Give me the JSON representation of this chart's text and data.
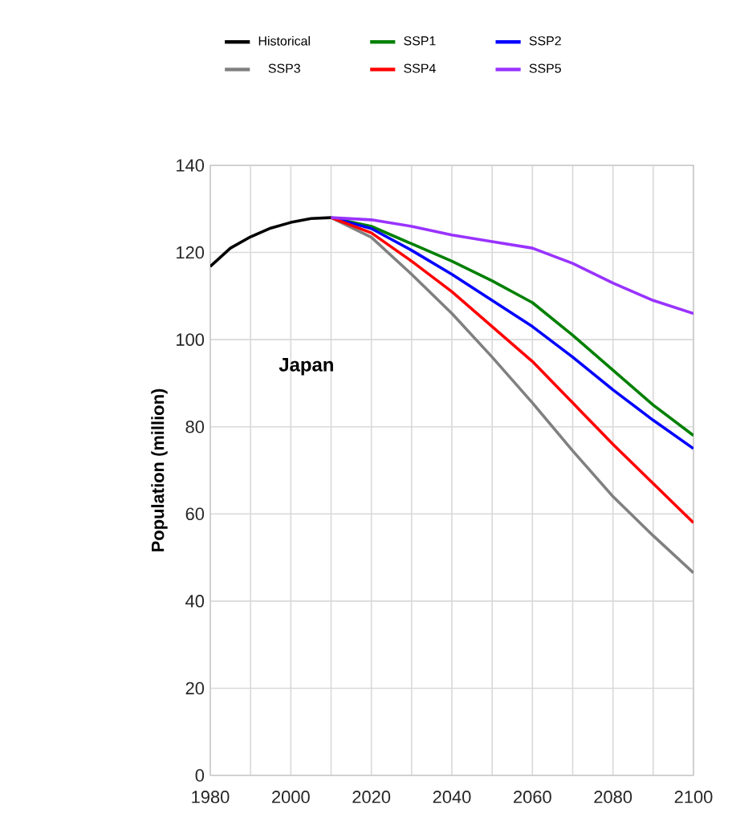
{
  "chart_data": {
    "type": "line",
    "ylabel": "Population (million)",
    "annotations": [
      "Japan"
    ],
    "xlim": [
      1980,
      2100
    ],
    "ylim": [
      0,
      140
    ],
    "xticks": [
      1980,
      {
        "value": 1990,
        "label": null
      },
      2000,
      {
        "value": 2010,
        "label": null
      },
      2020,
      {
        "value": 2030,
        "label": null
      },
      2040,
      {
        "value": 2050,
        "label": null
      },
      2060,
      {
        "value": 2070,
        "label": null
      },
      2080,
      {
        "value": 2090,
        "label": null
      },
      2100
    ],
    "yticks": [
      0,
      20,
      40,
      60,
      80,
      100,
      120,
      140
    ],
    "grid": true,
    "legend": "top",
    "marker": "none",
    "line_style": "solid",
    "series": [
      {
        "name": "Historical",
        "color": "#000000",
        "x": [
          1980,
          1985,
          1990,
          1995,
          2000,
          2005,
          2010
        ],
        "values": [
          116.8,
          121,
          123.6,
          125.6,
          126.9,
          127.8,
          128
        ]
      },
      {
        "name": "SSP1",
        "color": "#008000",
        "x": [
          2010,
          2020,
          2030,
          2040,
          2050,
          2060,
          2070,
          2080,
          2090,
          2100
        ],
        "values": [
          128,
          126,
          122,
          118,
          113.5,
          108.5,
          101,
          93,
          85,
          78
        ]
      },
      {
        "name": "SSP2",
        "color": "#0000ff",
        "x": [
          2010,
          2020,
          2030,
          2040,
          2050,
          2060,
          2070,
          2080,
          2090,
          2100
        ],
        "values": [
          128,
          125.5,
          120.5,
          115,
          109,
          103,
          96,
          88.5,
          81.5,
          75
        ]
      },
      {
        "name": "SSP3",
        "color": "#808080",
        "x": [
          2010,
          2020,
          2030,
          2040,
          2050,
          2060,
          2070,
          2080,
          2090,
          2100
        ],
        "values": [
          128,
          123.5,
          115,
          106,
          96,
          85.5,
          74.5,
          64,
          55,
          46.5
        ]
      },
      {
        "name": "SSP4",
        "color": "#ff0000",
        "x": [
          2010,
          2020,
          2030,
          2040,
          2050,
          2060,
          2070,
          2080,
          2090,
          2100
        ],
        "values": [
          128,
          124.5,
          118,
          111,
          103,
          95,
          85.5,
          76,
          67,
          58
        ]
      },
      {
        "name": "SSP5",
        "color": "#9933ff",
        "x": [
          2010,
          2020,
          2030,
          2040,
          2050,
          2060,
          2070,
          2080,
          2090,
          2100
        ],
        "values": [
          128,
          127.5,
          126,
          124,
          122.5,
          121,
          117.5,
          113,
          109,
          106
        ]
      }
    ]
  }
}
